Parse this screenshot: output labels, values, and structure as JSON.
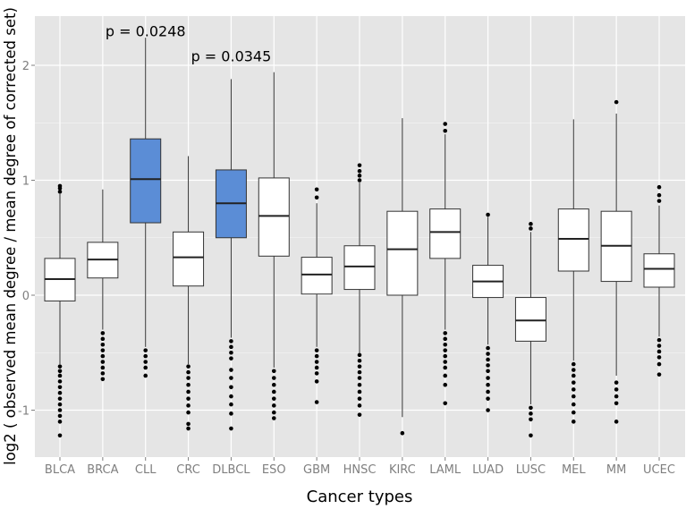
{
  "chart_data": {
    "type": "box",
    "title": "",
    "xlabel": "Cancer types",
    "ylabel": "log2 ( observed mean degree / mean degree of corrected set)",
    "ylim": [
      -1.4,
      2.4
    ],
    "yticks": [
      -1,
      0,
      1,
      2
    ],
    "ytick_labels": [
      "-1",
      "0",
      "1",
      "2"
    ],
    "grid": true,
    "colors": {
      "panel": "#e5e5e5",
      "grid": "#ffffff",
      "box_default": "#ffffff",
      "box_highlight": "#5b8dd6",
      "stroke": "#333333",
      "median": "#222222"
    },
    "categories": [
      "BLCA",
      "BRCA",
      "CLL",
      "CRC",
      "DLBCL",
      "ESO",
      "GBM",
      "HNSC",
      "KIRC",
      "LAML",
      "LUAD",
      "LUSC",
      "MEL",
      "MM",
      "UCEC"
    ],
    "boxes": [
      {
        "category": "BLCA",
        "q1": -0.05,
        "median": 0.14,
        "q3": 0.32,
        "whisker_low": -0.6,
        "whisker_high": 0.88,
        "highlight": false,
        "outliers_low": [
          -0.62,
          -0.66,
          -0.7,
          -0.75,
          -0.8,
          -0.85,
          -0.9,
          -0.95,
          -1.0,
          -1.05,
          -1.1,
          -1.22
        ],
        "outliers_high": [
          0.9,
          0.93,
          0.95
        ]
      },
      {
        "category": "BRCA",
        "q1": 0.15,
        "median": 0.31,
        "q3": 0.46,
        "whisker_low": -0.3,
        "whisker_high": 0.92,
        "highlight": false,
        "outliers_low": [
          -0.33,
          -0.38,
          -0.43,
          -0.48,
          -0.53,
          -0.58,
          -0.63,
          -0.68,
          -0.73
        ],
        "outliers_high": []
      },
      {
        "category": "CLL",
        "q1": 0.63,
        "median": 1.01,
        "q3": 1.36,
        "whisker_low": -0.45,
        "whisker_high": 2.24,
        "highlight": true,
        "outliers_low": [
          -0.48,
          -0.53,
          -0.58,
          -0.63,
          -0.7
        ],
        "outliers_high": []
      },
      {
        "category": "CRC",
        "q1": 0.08,
        "median": 0.33,
        "q3": 0.55,
        "whisker_low": -0.6,
        "whisker_high": 1.21,
        "highlight": false,
        "outliers_low": [
          -0.62,
          -0.67,
          -0.72,
          -0.78,
          -0.84,
          -0.9,
          -0.96,
          -1.02,
          -1.12,
          -1.16
        ],
        "outliers_high": []
      },
      {
        "category": "DLBCL",
        "q1": 0.5,
        "median": 0.8,
        "q3": 1.09,
        "whisker_low": -0.37,
        "whisker_high": 1.88,
        "highlight": true,
        "outliers_low": [
          -0.4,
          -0.45,
          -0.5,
          -0.55,
          -0.65,
          -0.72,
          -0.8,
          -0.88,
          -0.95,
          -1.03,
          -1.16
        ],
        "outliers_high": []
      },
      {
        "category": "ESO",
        "q1": 0.34,
        "median": 0.69,
        "q3": 1.02,
        "whisker_low": -0.63,
        "whisker_high": 1.94,
        "highlight": false,
        "outliers_low": [
          -0.66,
          -0.72,
          -0.78,
          -0.84,
          -0.9,
          -0.96,
          -1.02,
          -1.07
        ],
        "outliers_high": []
      },
      {
        "category": "GBM",
        "q1": 0.01,
        "median": 0.18,
        "q3": 0.33,
        "whisker_low": -0.45,
        "whisker_high": 0.8,
        "highlight": false,
        "outliers_low": [
          -0.48,
          -0.53,
          -0.58,
          -0.63,
          -0.68,
          -0.75,
          -0.93
        ],
        "outliers_high": [
          0.85,
          0.92
        ]
      },
      {
        "category": "HNSC",
        "q1": 0.05,
        "median": 0.25,
        "q3": 0.43,
        "whisker_low": -0.5,
        "whisker_high": 0.98,
        "highlight": false,
        "outliers_low": [
          -0.52,
          -0.57,
          -0.62,
          -0.67,
          -0.72,
          -0.78,
          -0.84,
          -0.9,
          -0.96,
          -1.04
        ],
        "outliers_high": [
          1.0,
          1.04,
          1.08,
          1.13
        ]
      },
      {
        "category": "KIRC",
        "q1": 0.0,
        "median": 0.4,
        "q3": 0.73,
        "whisker_low": -1.06,
        "whisker_high": 1.54,
        "highlight": false,
        "outliers_low": [
          -1.2
        ],
        "outliers_high": []
      },
      {
        "category": "LAML",
        "q1": 0.32,
        "median": 0.55,
        "q3": 0.75,
        "whisker_low": -0.3,
        "whisker_high": 1.4,
        "highlight": false,
        "outliers_low": [
          -0.33,
          -0.38,
          -0.43,
          -0.48,
          -0.53,
          -0.58,
          -0.63,
          -0.7,
          -0.78,
          -0.94
        ],
        "outliers_high": [
          1.43,
          1.49
        ]
      },
      {
        "category": "LUAD",
        "q1": -0.02,
        "median": 0.12,
        "q3": 0.26,
        "whisker_low": -0.43,
        "whisker_high": 0.68,
        "highlight": false,
        "outliers_low": [
          -0.46,
          -0.51,
          -0.56,
          -0.61,
          -0.66,
          -0.72,
          -0.78,
          -0.84,
          -0.9,
          -1.0
        ],
        "outliers_high": [
          0.7
        ]
      },
      {
        "category": "LUSC",
        "q1": -0.4,
        "median": -0.22,
        "q3": -0.02,
        "whisker_low": -0.95,
        "whisker_high": 0.55,
        "highlight": false,
        "outliers_low": [
          -0.98,
          -1.03,
          -1.08,
          -1.22
        ],
        "outliers_high": [
          0.58,
          0.62
        ]
      },
      {
        "category": "MEL",
        "q1": 0.21,
        "median": 0.49,
        "q3": 0.75,
        "whisker_low": -0.57,
        "whisker_high": 1.53,
        "highlight": false,
        "outliers_low": [
          -0.6,
          -0.65,
          -0.7,
          -0.76,
          -0.82,
          -0.88,
          -0.95,
          -1.02,
          -1.1
        ],
        "outliers_high": []
      },
      {
        "category": "MM",
        "q1": 0.12,
        "median": 0.43,
        "q3": 0.73,
        "whisker_low": -0.7,
        "whisker_high": 1.58,
        "highlight": false,
        "outliers_low": [
          -0.76,
          -0.82,
          -0.88,
          -0.94,
          -1.1
        ],
        "outliers_high": [
          1.68
        ]
      },
      {
        "category": "UCEC",
        "q1": 0.07,
        "median": 0.23,
        "q3": 0.36,
        "whisker_low": -0.36,
        "whisker_high": 0.78,
        "highlight": false,
        "outliers_low": [
          -0.39,
          -0.44,
          -0.49,
          -0.54,
          -0.6,
          -0.69
        ],
        "outliers_high": [
          0.82,
          0.87,
          0.94
        ]
      }
    ],
    "annotations": [
      {
        "text": "p = 0.0248",
        "category": "CLL",
        "y": 2.3
      },
      {
        "text": "p = 0.0345",
        "category": "DLBCL",
        "y": 2.08
      }
    ]
  }
}
